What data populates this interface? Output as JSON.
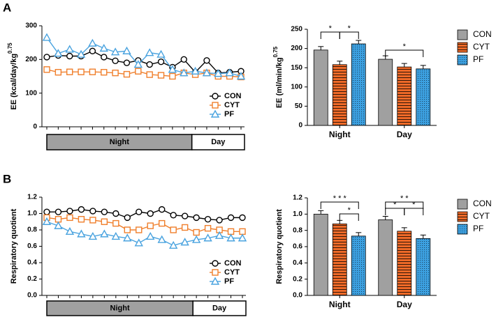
{
  "panels": [
    "A",
    "B"
  ],
  "chart_data": [
    {
      "type": "line",
      "ylabel": "EE (kcal/day/kg",
      "ylabel_sup": "0.75",
      "categories": [
        null,
        null,
        null,
        null,
        null,
        null,
        null,
        null,
        null,
        null,
        null,
        null,
        null,
        null,
        null,
        null,
        null,
        null
      ],
      "ylim": [
        0,
        300
      ],
      "yticks": [
        0,
        100,
        200,
        300
      ],
      "period_labels": [
        "Night",
        "Day"
      ],
      "series": [
        {
          "name": "CON",
          "color": "#000000",
          "marker": "circle",
          "values": [
            207,
            212,
            210,
            210,
            225,
            207,
            196,
            190,
            197,
            185,
            193,
            177,
            200,
            162,
            197,
            160,
            162,
            165
          ]
        },
        {
          "name": "CYT",
          "color": "#f07f2c",
          "marker": "square",
          "values": [
            170,
            162,
            163,
            163,
            163,
            162,
            160,
            156,
            165,
            155,
            153,
            150,
            160,
            155,
            160,
            150,
            150,
            148
          ]
        },
        {
          "name": "PF",
          "color": "#4aa3df",
          "marker": "triangle",
          "values": [
            265,
            218,
            230,
            215,
            248,
            233,
            222,
            225,
            185,
            220,
            215,
            170,
            160,
            165,
            160,
            158,
            160,
            150
          ]
        }
      ]
    },
    {
      "type": "bar",
      "ylabel": "EE (ml/min/kg",
      "ylabel_sup": "0.75",
      "categories": [
        "Night",
        "Day"
      ],
      "ylim": [
        0,
        250
      ],
      "yticks": [
        0,
        50,
        100,
        150,
        200,
        250
      ],
      "annotations": [
        "*",
        "*",
        "*"
      ],
      "series": [
        {
          "name": "CON",
          "color": "#a0a0a0",
          "values": [
            196,
            172
          ]
        },
        {
          "name": "CYT",
          "color": "#f06a28",
          "values": [
            158,
            152
          ]
        },
        {
          "name": "PF",
          "color": "#3ca0e0",
          "values": [
            212,
            147
          ]
        }
      ]
    },
    {
      "type": "line",
      "ylabel": "Respiratory quotient",
      "categories": [
        null,
        null,
        null,
        null,
        null,
        null,
        null,
        null,
        null,
        null,
        null,
        null,
        null,
        null,
        null,
        null,
        null,
        null
      ],
      "ylim": [
        0,
        1.2
      ],
      "yticks": [
        {
          "value": 0,
          "label": "0.0"
        },
        {
          "value": 0.2,
          "label": "0.2"
        },
        {
          "value": 0.4,
          "label": "0.4"
        },
        {
          "value": 0.6,
          "label": "0.6"
        },
        {
          "value": 0.8,
          "label": "0.8"
        },
        {
          "value": 1,
          "label": "1.0"
        },
        {
          "value": 1.2,
          "label": "1.2"
        }
      ],
      "period_labels": [
        "Night",
        "Day"
      ],
      "series": [
        {
          "name": "CON",
          "color": "#000000",
          "marker": "circle",
          "values": [
            1.02,
            1.02,
            1.03,
            1.05,
            1.03,
            1.02,
            1.0,
            0.95,
            1.02,
            1.0,
            1.05,
            0.98,
            0.97,
            0.95,
            0.93,
            0.92,
            0.95,
            0.95
          ]
        },
        {
          "name": "CYT",
          "color": "#f07f2c",
          "marker": "square",
          "values": [
            0.95,
            0.93,
            0.95,
            0.93,
            0.92,
            0.9,
            0.88,
            0.8,
            0.8,
            0.85,
            0.88,
            0.8,
            0.83,
            0.77,
            0.82,
            0.8,
            0.78,
            0.78
          ]
        },
        {
          "name": "PF",
          "color": "#4aa3df",
          "marker": "triangle",
          "values": [
            0.9,
            0.85,
            0.78,
            0.75,
            0.72,
            0.75,
            0.72,
            0.7,
            0.64,
            0.72,
            0.68,
            0.61,
            0.65,
            0.68,
            0.7,
            0.73,
            0.7,
            0.7
          ]
        }
      ]
    },
    {
      "type": "bar",
      "ylabel": "Respiratory quotient",
      "categories": [
        "Night",
        "Day"
      ],
      "ylim": [
        0,
        1.2
      ],
      "yticks": [
        {
          "value": 0,
          "label": "0.0"
        },
        {
          "value": 0.2,
          "label": "0.2"
        },
        {
          "value": 0.4,
          "label": "0.4"
        },
        {
          "value": 0.6,
          "label": "0.6"
        },
        {
          "value": 0.8,
          "label": "0.8"
        },
        {
          "value": 1,
          "label": "1.0"
        },
        {
          "value": 1.2,
          "label": "1.2"
        }
      ],
      "annotations": [
        "* * *",
        "*",
        "* *",
        "*",
        "*"
      ],
      "series": [
        {
          "name": "CON",
          "color": "#a0a0a0",
          "values": [
            1.0,
            0.93
          ]
        },
        {
          "name": "CYT",
          "color": "#f06a28",
          "values": [
            0.88,
            0.79
          ]
        },
        {
          "name": "PF",
          "color": "#3ca0e0",
          "values": [
            0.73,
            0.7
          ]
        }
      ]
    }
  ]
}
